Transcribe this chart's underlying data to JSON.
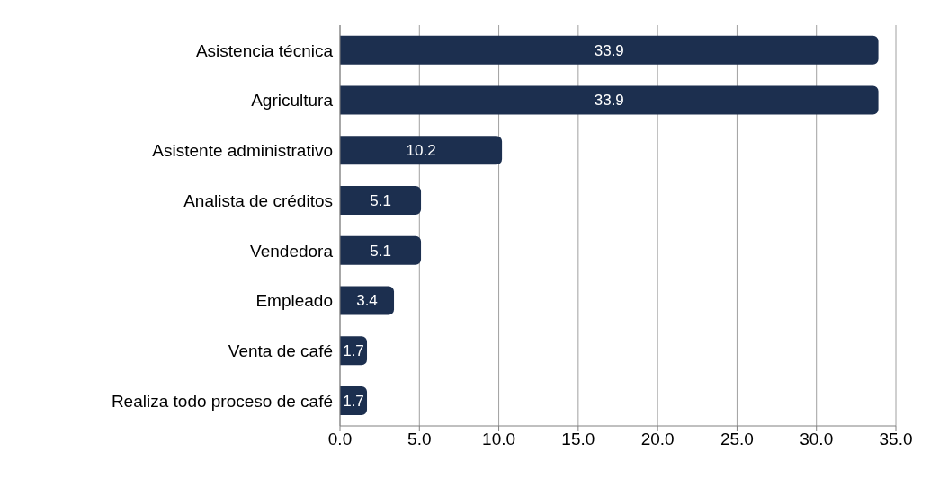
{
  "chart_data": {
    "type": "bar",
    "orientation": "horizontal",
    "categories": [
      "Asistencia técnica",
      "Agricultura",
      "Asistente administrativo",
      "Analista de créditos",
      "Vendedora",
      "Empleado",
      "Venta de café",
      "Realiza todo proceso de café"
    ],
    "values": [
      33.9,
      33.9,
      10.2,
      5.1,
      5.1,
      3.4,
      1.7,
      1.7
    ],
    "color": "#1c2f4f",
    "xlim": [
      0,
      35
    ],
    "xticks": [
      {
        "value": 0,
        "label": "0.0"
      },
      {
        "value": 5,
        "label": "5.0"
      },
      {
        "value": 10,
        "label": "10.0"
      },
      {
        "value": 15,
        "label": "15.0"
      },
      {
        "value": 20,
        "label": "20.0"
      },
      {
        "value": 25,
        "label": "25.0"
      },
      {
        "value": 30,
        "label": "30.0"
      },
      {
        "value": 35,
        "label": "35.0"
      }
    ],
    "grid": "x",
    "data_labels": true
  }
}
